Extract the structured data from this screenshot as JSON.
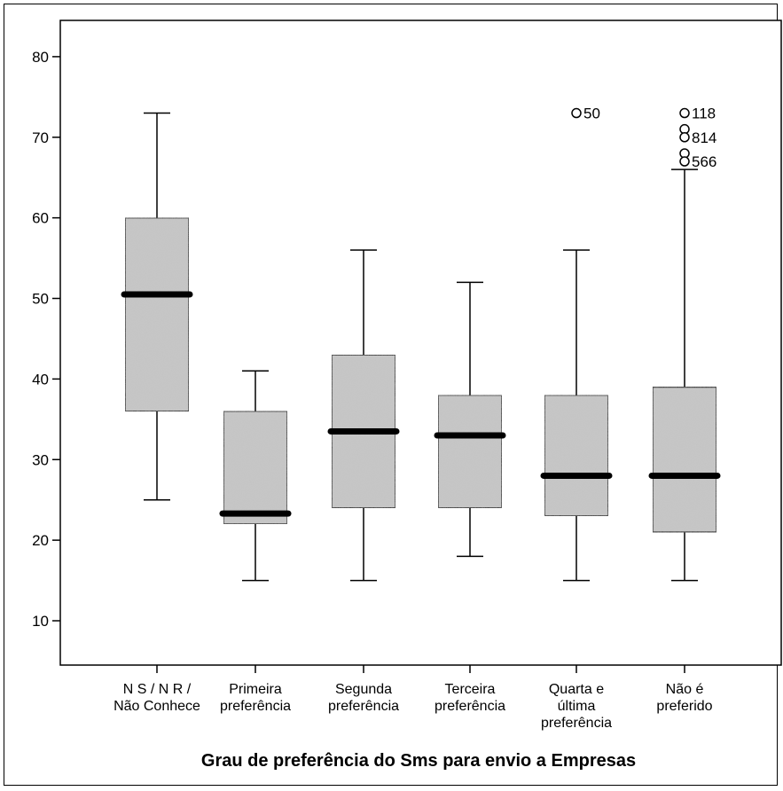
{
  "chart_data": {
    "type": "box",
    "xlabel": "Grau de preferência do Sms para envio a Empresas",
    "ylabel": "",
    "ylim": [
      4.5,
      84.5
    ],
    "yticks": [
      10,
      20,
      30,
      40,
      50,
      60,
      70,
      80
    ],
    "grid": false,
    "fill_color": "#c8c8c8",
    "median_color": "#000000",
    "categories": [
      {
        "label_lines": [
          "N S / N R /",
          "Não Conhece"
        ],
        "whisker_low": 25,
        "q1": 36,
        "median": 50.5,
        "q3": 60,
        "whisker_high": 73,
        "outliers": []
      },
      {
        "label_lines": [
          "Primeira",
          "preferência"
        ],
        "whisker_low": 15,
        "q1": 22,
        "median": 23.3,
        "q3": 36,
        "whisker_high": 41,
        "outliers": []
      },
      {
        "label_lines": [
          "Segunda",
          "preferência"
        ],
        "whisker_low": 15,
        "q1": 24,
        "median": 33.5,
        "q3": 43,
        "whisker_high": 56,
        "outliers": []
      },
      {
        "label_lines": [
          "Terceira",
          "preferência"
        ],
        "whisker_low": 18,
        "q1": 24,
        "median": 33,
        "q3": 38,
        "whisker_high": 52,
        "outliers": []
      },
      {
        "label_lines": [
          "Quarta e",
          "última",
          "preferência"
        ],
        "whisker_low": 15,
        "q1": 23,
        "median": 28,
        "q3": 38,
        "whisker_high": 56,
        "outliers": [
          {
            "value": 73,
            "label": "50"
          }
        ]
      },
      {
        "label_lines": [
          "Não é",
          "preferido"
        ],
        "whisker_low": 15,
        "q1": 21,
        "median": 28,
        "q3": 39,
        "whisker_high": 66,
        "outliers": [
          {
            "value": 73,
            "label": "118"
          },
          {
            "value": 71,
            "label": ""
          },
          {
            "value": 70,
            "label": "814"
          },
          {
            "value": 68,
            "label": ""
          },
          {
            "value": 67,
            "label": "566"
          }
        ]
      }
    ]
  }
}
